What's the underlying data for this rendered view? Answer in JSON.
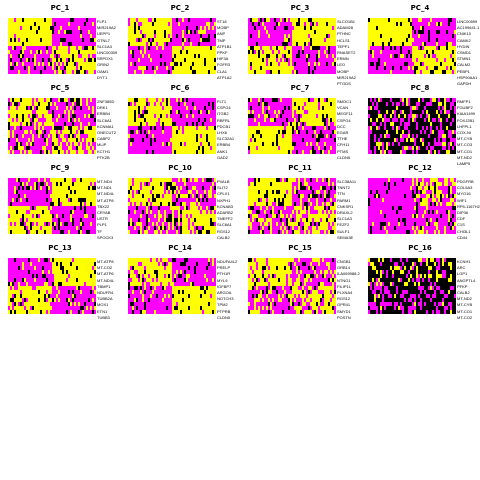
{
  "colors": {
    "low": "#ff00ff",
    "mid": "#000000",
    "high": "#ffff00"
  },
  "chart_data": [
    {
      "type": "heatmap",
      "title": "PC_1",
      "genes": [
        "FLP1",
        "MIR219A2",
        "UEPP1",
        "GTNL7",
        "SLC1A3",
        "LINC00309",
        "SRPDX1",
        "GRIN2",
        "OAM1",
        "DYT1"
      ],
      "pattern": "left-high-top"
    },
    {
      "type": "heatmap",
      "title": "PC_2",
      "genes": [
        "ST18",
        "MOBP",
        "ANP",
        "TMP",
        "ATP1B1",
        "PPKF",
        "HIF3A",
        "FGFR3",
        "CLA1",
        "ATP1A2"
      ],
      "pattern": "right-high-bottom"
    },
    {
      "type": "heatmap",
      "title": "PC_3",
      "genes": [
        "SLCO1B1",
        "ADAM28",
        "PTHNC",
        "HCLS1",
        "TEPF1",
        "RNASET2",
        "ERMN",
        "LEO",
        "MOBP",
        "MIR219A2",
        "PTGDS"
      ],
      "pattern": "right-high-top"
    },
    {
      "type": "heatmap",
      "title": "PC_4",
      "genes": [
        "LINC00599",
        "AC199641.1",
        "CNIK10",
        "CAMK2",
        "HYDIN",
        "CSMD1",
        "STMN1",
        "CALM2",
        "PEBP1",
        "HSP90AA1",
        "GAPDH"
      ],
      "pattern": "left-high-top-strong"
    },
    {
      "type": "heatmap",
      "title": "PC_5",
      "genes": [
        "ZNF385D",
        "DRK1",
        "ERBB4",
        "SLC6A1",
        "KCNMA1",
        "ONECUT2",
        "CABP2",
        "MLIP",
        "KCTH1",
        "PTK2B"
      ],
      "pattern": "mixed-left"
    },
    {
      "type": "heatmap",
      "title": "PC_6",
      "genes": [
        "FLT1",
        "CSPG4",
        "ITGB2",
        "RBFRL",
        "PDCB1",
        "LHX6",
        "SLC32A1",
        "ERBB4",
        "ANK1",
        "GAD2"
      ],
      "pattern": "right-high-bottom"
    },
    {
      "type": "heatmap",
      "title": "PC_7",
      "genes": [
        "SMOC1",
        "VCAN",
        "MEGF11",
        "CSPG4",
        "DCC",
        "EGAR",
        "TTHE",
        "CFH11",
        "PTMS",
        "CLDN5"
      ],
      "pattern": "left-high-bottom"
    },
    {
      "type": "heatmap",
      "title": "PC_8",
      "genes": [
        "RMFP1",
        "FGUBF2",
        "KIAA1499",
        "FOXJ2B1",
        "LHFPL1",
        "COX-NI",
        "MT-CYB",
        "MT-CO3",
        "MT-CO1",
        "MT-ND2",
        "LAMP5"
      ],
      "pattern": "mostly-dark"
    },
    {
      "type": "heatmap",
      "title": "PC_9",
      "genes": [
        "MT-ND4",
        "MT-ND1",
        "MT-ND4L",
        "MT-ATP8",
        "TBX22",
        "CRYAB",
        "USTR",
        "PLP1",
        "TF",
        "SPOCK3"
      ],
      "pattern": "right-high-top"
    },
    {
      "type": "heatmap",
      "title": "PC_10",
      "genes": [
        "PVALB",
        "SLIT2",
        "CPLX1",
        "NXPH1",
        "KCNAB3",
        "ADARB2",
        "TMEFF2",
        "SLC6A1",
        "RGS12",
        "CALB2"
      ],
      "pattern": "mixed-left"
    },
    {
      "type": "heatmap",
      "title": "PC_11",
      "genes": [
        "SLC38A11",
        "TNNT2",
        "TTN",
        "PARM1",
        "CNKSR1",
        "DRAXL2",
        "SLC1A3",
        "FEZF2",
        "SULF1",
        "SEMA3E"
      ],
      "pattern": "mixed-left"
    },
    {
      "type": "heatmap",
      "title": "PC_12",
      "genes": [
        "PDGFRB",
        "COL5A3",
        "MYO16",
        "WIF1",
        "RP5-1167H21",
        "DIP36",
        "CDF",
        "C1S",
        "CHI3L1",
        "CD44"
      ],
      "pattern": "mostly-magenta-right-spots"
    },
    {
      "type": "heatmap",
      "title": "PC_13",
      "genes": [
        "MT-ATP8",
        "MT-CO2",
        "MT-ATP6",
        "MT-ND4L",
        "TBMP1",
        "NDUFR4",
        "TUBB2A",
        "MOX1",
        "ETN1",
        "TUBB3"
      ],
      "pattern": "right-high-top"
    },
    {
      "type": "heatmap",
      "title": "PC_14",
      "genes": [
        "NDUFA4L2",
        "PRELP",
        "PTH1R",
        "MYL9",
        "IGFBP7",
        "ARGOA",
        "NOTCH3",
        "TPM2",
        "PTPRB",
        "CLDN5"
      ],
      "pattern": "right-high-bottom"
    },
    {
      "type": "heatmap",
      "title": "PC_15",
      "genes": [
        "CNGB1",
        "GRB14",
        "ILA069988.2",
        "NTNG1",
        "FILIP1L",
        "PLXNA4",
        "RGS12",
        "GPR41",
        "SMYD1",
        "POSTN"
      ],
      "pattern": "mixed-left"
    },
    {
      "type": "heatmap",
      "title": "PC_16",
      "genes": [
        "KCNH1",
        "ARC",
        "LGP1",
        "ANGPTL4",
        "PFKP",
        "CALB2",
        "MT-ND2",
        "MT-CYB",
        "MT-CO1",
        "MT-CO2"
      ],
      "pattern": "mostly-dark-yellow-top"
    }
  ]
}
